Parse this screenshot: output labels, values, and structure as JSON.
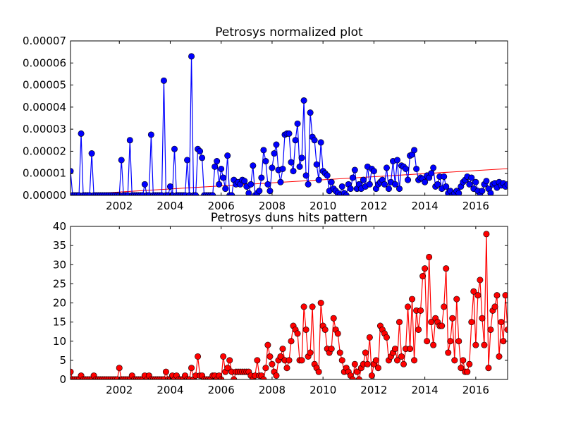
{
  "chart_data": [
    {
      "type": "line",
      "title": "Petrosys normalized plot",
      "xlim": [
        2000.083,
        2017.25
      ],
      "xticks": [
        2002,
        2004,
        2006,
        2008,
        2010,
        2012,
        2014,
        2016
      ],
      "ylim": [
        0,
        7e-05
      ],
      "yticks": [
        {
          "value": 0,
          "label": "0.00000"
        },
        {
          "value": 1e-05,
          "label": "0.00001"
        },
        {
          "value": 2e-05,
          "label": "0.00002"
        },
        {
          "value": 3e-05,
          "label": "0.00003"
        },
        {
          "value": 4e-05,
          "label": "0.00004"
        },
        {
          "value": 5e-05,
          "label": "0.00005"
        },
        {
          "value": 6e-05,
          "label": "0.00006"
        },
        {
          "value": 7e-05,
          "label": "0.00007"
        }
      ],
      "x": [
        2000.083,
        2000.167,
        2000.25,
        2000.333,
        2000.417,
        2000.5,
        2000.583,
        2000.667,
        2000.75,
        2000.833,
        2000.917,
        2001.0,
        2001.083,
        2001.167,
        2001.25,
        2001.333,
        2001.417,
        2001.5,
        2001.583,
        2001.667,
        2001.75,
        2001.833,
        2001.917,
        2002.0,
        2002.083,
        2002.167,
        2002.25,
        2002.333,
        2002.417,
        2002.5,
        2002.583,
        2002.667,
        2002.75,
        2002.833,
        2002.917,
        2003.0,
        2003.083,
        2003.167,
        2003.25,
        2003.333,
        2003.417,
        2003.5,
        2003.583,
        2003.667,
        2003.75,
        2003.833,
        2003.917,
        2004.0,
        2004.083,
        2004.167,
        2004.25,
        2004.333,
        2004.417,
        2004.5,
        2004.583,
        2004.667,
        2004.75,
        2004.833,
        2004.917,
        2005.0,
        2005.083,
        2005.167,
        2005.25,
        2005.333,
        2005.417,
        2005.5,
        2005.583,
        2005.667,
        2005.75,
        2005.833,
        2005.917,
        2006.0,
        2006.083,
        2006.167,
        2006.25,
        2006.333,
        2006.417,
        2006.5,
        2006.583,
        2006.667,
        2006.75,
        2006.833,
        2006.917,
        2007.0,
        2007.083,
        2007.167,
        2007.25,
        2007.333,
        2007.417,
        2007.5,
        2007.583,
        2007.667,
        2007.75,
        2007.833,
        2007.917,
        2008.0,
        2008.083,
        2008.167,
        2008.25,
        2008.333,
        2008.417,
        2008.5,
        2008.583,
        2008.667,
        2008.75,
        2008.833,
        2008.917,
        2009.0,
        2009.083,
        2009.167,
        2009.25,
        2009.333,
        2009.417,
        2009.5,
        2009.583,
        2009.667,
        2009.75,
        2009.833,
        2009.917,
        2010.0,
        2010.083,
        2010.167,
        2010.25,
        2010.333,
        2010.417,
        2010.5,
        2010.583,
        2010.667,
        2010.75,
        2010.833,
        2010.917,
        2011.0,
        2011.083,
        2011.167,
        2011.25,
        2011.333,
        2011.417,
        2011.5,
        2011.583,
        2011.667,
        2011.75,
        2011.833,
        2011.917,
        2012.0,
        2012.083,
        2012.167,
        2012.25,
        2012.333,
        2012.417,
        2012.5,
        2012.583,
        2012.667,
        2012.75,
        2012.833,
        2012.917,
        2013.0,
        2013.083,
        2013.167,
        2013.25,
        2013.333,
        2013.417,
        2013.5,
        2013.583,
        2013.667,
        2013.75,
        2013.833,
        2013.917,
        2014.0,
        2014.083,
        2014.167,
        2014.25,
        2014.333,
        2014.417,
        2014.5,
        2014.583,
        2014.667,
        2014.75,
        2014.833,
        2014.917,
        2015.0,
        2015.083,
        2015.167,
        2015.25,
        2015.333,
        2015.417,
        2015.5,
        2015.583,
        2015.667,
        2015.75,
        2015.833,
        2015.917,
        2016.0,
        2016.083,
        2016.167,
        2016.25,
        2016.333,
        2016.417,
        2016.5,
        2016.583,
        2016.667,
        2016.75,
        2016.833,
        2016.917,
        2017.0,
        2017.083,
        2017.167,
        2017.25
      ],
      "series": [
        {
          "color": "#0000ff",
          "values": [
            1.1e-05,
            0,
            0,
            0,
            0,
            2.8e-05,
            0,
            0,
            0,
            0,
            1.9e-05,
            0,
            0,
            0,
            0,
            0,
            0,
            0,
            0,
            0,
            0,
            0,
            0,
            0,
            1.6e-05,
            0,
            0,
            0,
            2.5e-05,
            0,
            0,
            0,
            0,
            0,
            0,
            5e-06,
            0,
            0,
            2.75e-05,
            0,
            0,
            0,
            0,
            0,
            5.2e-05,
            0,
            0,
            4e-06,
            0,
            2.1e-05,
            0,
            0,
            0,
            0,
            0,
            1.6e-05,
            0,
            6.3e-05,
            0,
            0,
            2.1e-05,
            2e-05,
            1.7e-05,
            0,
            0,
            0,
            0,
            0,
            1.3e-05,
            1.55e-05,
            5e-06,
            1.2e-05,
            8e-06,
            3e-06,
            1.8e-05,
            0,
            0,
            7e-06,
            5e-06,
            6e-06,
            5e-06,
            7e-06,
            6.5e-06,
            4e-06,
            1e-06,
            5e-06,
            1.35e-05,
            0,
            1e-06,
            2e-06,
            8e-06,
            2.05e-05,
            1.55e-05,
            5e-06,
            2e-06,
            1.25e-05,
            1.9e-05,
            2.3e-05,
            1.15e-05,
            6e-06,
            1.2e-05,
            2.75e-05,
            2.8e-05,
            2.8e-05,
            1.5e-05,
            1.1e-05,
            2.5e-05,
            3.25e-05,
            1.3e-05,
            1.7e-05,
            4.3e-05,
            9e-06,
            5e-06,
            3.75e-05,
            2.65e-05,
            2.5e-05,
            1.4e-05,
            7e-06,
            2.4e-05,
            1.1e-05,
            1e-05,
            9e-06,
            2e-06,
            6e-06,
            3e-06,
            2e-06,
            1e-06,
            0,
            4e-06,
            1e-06,
            0,
            5e-06,
            3e-06,
            8e-06,
            1.15e-05,
            3e-06,
            5e-06,
            3e-06,
            7e-06,
            4e-06,
            1.3e-05,
            5e-06,
            1.2e-05,
            1.1e-05,
            3e-06,
            5e-06,
            6e-06,
            7e-06,
            5e-06,
            1.25e-05,
            3e-06,
            6e-06,
            1.55e-05,
            5e-06,
            1.6e-05,
            3e-06,
            1.35e-05,
            1.3e-05,
            1.2e-05,
            7e-06,
            1.8e-05,
            1.85e-05,
            2.05e-05,
            1.2e-05,
            7e-06,
            8e-06,
            7.5e-06,
            6e-06,
            9e-06,
            8e-06,
            1e-05,
            1.25e-05,
            4e-06,
            5e-06,
            8.5e-06,
            3e-06,
            8.5e-06,
            4e-06,
            1e-06,
            2e-06,
            0,
            1e-06,
            2e-06,
            1e-06,
            4e-06,
            6e-06,
            7e-06,
            8.5e-06,
            5e-06,
            8e-06,
            3e-06,
            6e-06,
            2e-06,
            0,
            2e-06,
            5e-06,
            6.5e-06,
            3e-06,
            1e-06,
            5e-06,
            5.5e-06,
            3.5e-06,
            6e-06,
            4.5e-06,
            5.5e-06,
            4e-06,
            5e-06
          ]
        }
      ],
      "trend": {
        "color": "#ff0000",
        "x": [
          2000.083,
          2017.25
        ],
        "values": [
          2e-07,
          1.21e-05
        ]
      }
    },
    {
      "type": "line",
      "title": "Petrosys duns hits pattern",
      "xlim": [
        2000.083,
        2017.25
      ],
      "xticks": [
        2002,
        2004,
        2006,
        2008,
        2010,
        2012,
        2014,
        2016
      ],
      "ylim": [
        0,
        40
      ],
      "yticks": [
        0,
        5,
        10,
        15,
        20,
        25,
        30,
        35,
        40
      ],
      "x": [
        2000.083,
        2000.167,
        2000.25,
        2000.333,
        2000.417,
        2000.5,
        2000.583,
        2000.667,
        2000.75,
        2000.833,
        2000.917,
        2001.0,
        2001.083,
        2001.167,
        2001.25,
        2001.333,
        2001.417,
        2001.5,
        2001.583,
        2001.667,
        2001.75,
        2001.833,
        2001.917,
        2002.0,
        2002.083,
        2002.167,
        2002.25,
        2002.333,
        2002.417,
        2002.5,
        2002.583,
        2002.667,
        2002.75,
        2002.833,
        2002.917,
        2003.0,
        2003.083,
        2003.167,
        2003.25,
        2003.333,
        2003.417,
        2003.5,
        2003.583,
        2003.667,
        2003.75,
        2003.833,
        2003.917,
        2004.0,
        2004.083,
        2004.167,
        2004.25,
        2004.333,
        2004.417,
        2004.5,
        2004.583,
        2004.667,
        2004.75,
        2004.833,
        2004.917,
        2005.0,
        2005.083,
        2005.167,
        2005.25,
        2005.333,
        2005.417,
        2005.5,
        2005.583,
        2005.667,
        2005.75,
        2005.833,
        2005.917,
        2006.0,
        2006.083,
        2006.167,
        2006.25,
        2006.333,
        2006.417,
        2006.5,
        2006.583,
        2006.667,
        2006.75,
        2006.833,
        2006.917,
        2007.0,
        2007.083,
        2007.167,
        2007.25,
        2007.333,
        2007.417,
        2007.5,
        2007.583,
        2007.667,
        2007.75,
        2007.833,
        2007.917,
        2008.0,
        2008.083,
        2008.167,
        2008.25,
        2008.333,
        2008.417,
        2008.5,
        2008.583,
        2008.667,
        2008.75,
        2008.833,
        2008.917,
        2009.0,
        2009.083,
        2009.167,
        2009.25,
        2009.333,
        2009.417,
        2009.5,
        2009.583,
        2009.667,
        2009.75,
        2009.833,
        2009.917,
        2010.0,
        2010.083,
        2010.167,
        2010.25,
        2010.333,
        2010.417,
        2010.5,
        2010.583,
        2010.667,
        2010.75,
        2010.833,
        2010.917,
        2011.0,
        2011.083,
        2011.167,
        2011.25,
        2011.333,
        2011.417,
        2011.5,
        2011.583,
        2011.667,
        2011.75,
        2011.833,
        2011.917,
        2012.0,
        2012.083,
        2012.167,
        2012.25,
        2012.333,
        2012.417,
        2012.5,
        2012.583,
        2012.667,
        2012.75,
        2012.833,
        2012.917,
        2013.0,
        2013.083,
        2013.167,
        2013.25,
        2013.333,
        2013.417,
        2013.5,
        2013.583,
        2013.667,
        2013.75,
        2013.833,
        2013.917,
        2014.0,
        2014.083,
        2014.167,
        2014.25,
        2014.333,
        2014.417,
        2014.5,
        2014.583,
        2014.667,
        2014.75,
        2014.833,
        2014.917,
        2015.0,
        2015.083,
        2015.167,
        2015.25,
        2015.333,
        2015.417,
        2015.5,
        2015.583,
        2015.667,
        2015.75,
        2015.833,
        2015.917,
        2016.0,
        2016.083,
        2016.167,
        2016.25,
        2016.333,
        2016.417,
        2016.5,
        2016.583,
        2016.667,
        2016.75,
        2016.833,
        2016.917,
        2017.0,
        2017.083,
        2017.167,
        2017.25
      ],
      "series": [
        {
          "color": "#ff0000",
          "values": [
            2,
            0,
            0,
            0,
            0,
            1,
            0,
            0,
            0,
            0,
            0,
            1,
            0,
            0,
            0,
            0,
            0,
            0,
            0,
            0,
            0,
            0,
            0,
            3,
            0,
            0,
            0,
            0,
            0,
            1,
            0,
            0,
            0,
            0,
            0,
            1,
            0,
            1,
            0,
            0,
            0,
            0,
            0,
            0,
            0,
            2,
            0,
            0,
            1,
            0,
            1,
            0,
            0,
            0,
            1,
            0,
            0,
            3,
            0,
            1,
            6,
            1,
            1,
            0,
            0,
            0,
            0,
            1,
            1,
            0,
            1,
            0,
            6,
            2,
            3,
            5,
            2,
            0,
            2,
            2,
            2,
            2,
            2,
            2,
            2,
            1,
            0,
            1,
            5,
            1,
            1,
            0,
            3,
            9,
            6,
            4,
            2,
            1,
            5,
            6,
            8,
            5,
            3,
            5,
            10,
            14,
            13,
            12,
            5,
            5,
            19,
            13,
            6,
            7,
            19,
            4,
            3,
            2,
            20,
            14,
            13,
            8,
            7,
            8,
            16,
            13,
            12,
            7,
            5,
            2,
            3,
            2,
            1,
            0,
            4,
            2,
            0,
            3,
            4,
            7,
            4,
            11,
            1,
            4,
            5,
            3,
            14,
            13,
            12,
            11,
            5,
            6,
            7,
            8,
            5,
            15,
            6,
            4,
            8,
            19,
            8,
            21,
            5,
            18,
            13,
            18,
            27,
            29,
            10,
            32,
            15,
            9,
            16,
            15,
            14,
            14,
            19,
            29,
            7,
            10,
            16,
            5,
            21,
            10,
            3,
            5,
            2,
            2,
            4,
            15,
            23,
            9,
            22,
            26,
            16,
            9,
            38,
            3,
            13,
            18,
            19,
            22,
            6,
            15,
            10,
            22,
            13
          ]
        }
      ]
    }
  ]
}
